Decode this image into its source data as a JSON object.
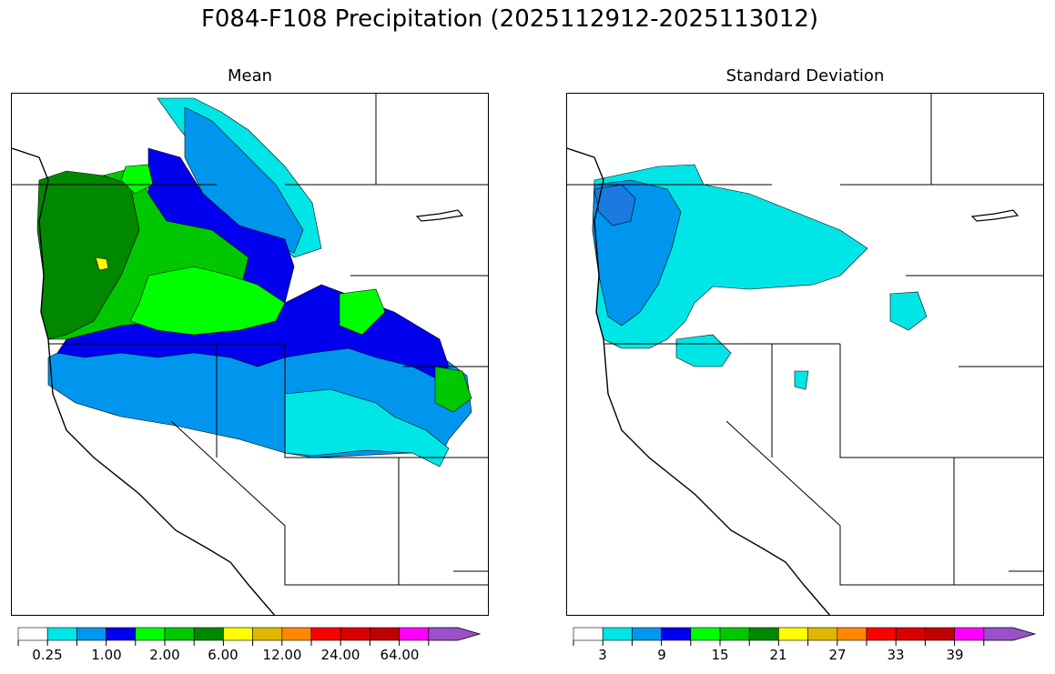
{
  "figure": {
    "title": "F084-F108 Precipitation (2025112912-2025113012)"
  },
  "panels": [
    {
      "title": "Mean"
    },
    {
      "title": "Standard Deviation"
    }
  ],
  "colorbar": {
    "colors": [
      "#ffffff",
      "#00e5e5",
      "#0096ee",
      "#0000ee",
      "#00ff00",
      "#00c800",
      "#008800",
      "#ffff00",
      "#e0b800",
      "#ff8800",
      "#ff0000",
      "#d80000",
      "#c00000",
      "#ff00ff",
      "#9a50c8"
    ],
    "mean_tick_labels": [
      "0.25",
      "1.00",
      "2.00",
      "6.00",
      "12.00",
      "24.00",
      "64.00"
    ],
    "std_tick_labels": [
      "3",
      "9",
      "15",
      "21",
      "27",
      "33",
      "39"
    ]
  },
  "map_colors": {
    "cyan": "#00e5e5",
    "light_blue": "#0096ee",
    "blue": "#0000ee",
    "lime": "#00ff00",
    "green": "#00c800",
    "dark_green": "#008800",
    "yellow": "#ffff00"
  }
}
